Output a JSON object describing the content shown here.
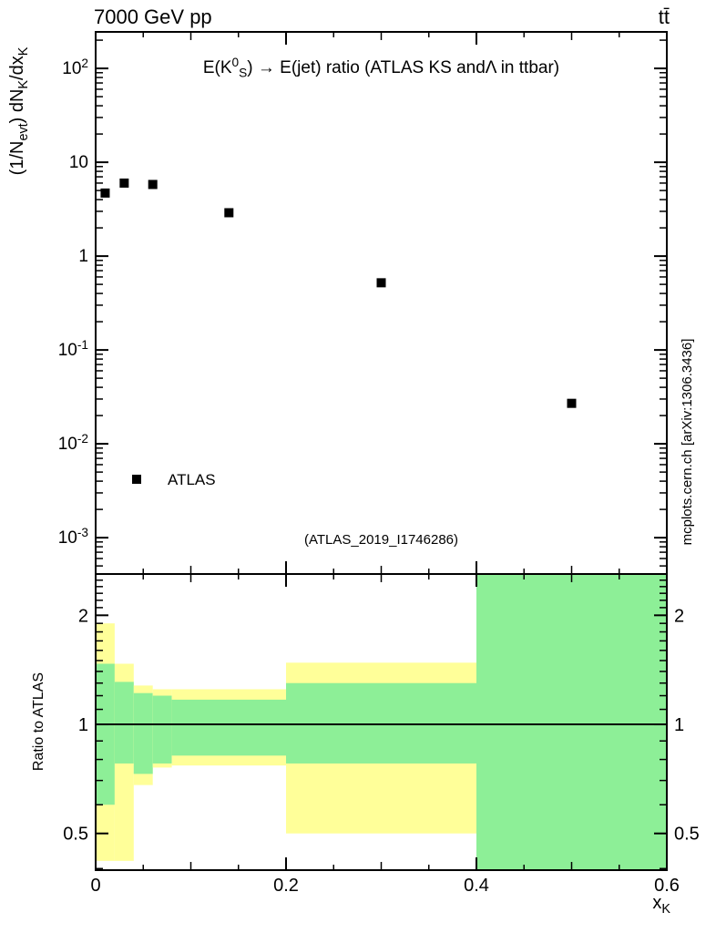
{
  "header": {
    "left_label": "7000 GeV pp",
    "right_label": "tt̄"
  },
  "watermark": {
    "text": "mcplots.cern.ch [arXiv:1306.3436]"
  },
  "chart_data": {
    "type": "scatter",
    "title": "E(K^{0}_{S}) → E(jet) ratio (ATLAS KS andΛ in ttbar)",
    "annotation": "(ATLAS_2019_I1746286)",
    "legend": [
      {
        "label": "ATLAS",
        "marker": "filled-square",
        "color": "#000000"
      }
    ],
    "x": {
      "label": "x_{K}",
      "min": 0,
      "max": 0.6,
      "major_ticks": [
        0,
        0.2,
        0.4,
        0.6
      ],
      "tick_labels": [
        "0",
        "0.2",
        "0.4",
        "0.6"
      ],
      "minor_step": 0.05
    },
    "top_panel": {
      "ylabel": "(1/N_{evt}) dN_{K}/dx_{K}",
      "yscale": "log",
      "ymin": 0.00041,
      "ymax": 245,
      "grid": false,
      "ticks": [
        {
          "value": 100,
          "label": "10^{2}"
        },
        {
          "value": 10,
          "label": "10"
        },
        {
          "value": 1,
          "label": "1"
        },
        {
          "value": 0.1,
          "label": "10^{-1}"
        },
        {
          "value": 0.01,
          "label": "10^{-2}"
        },
        {
          "value": 0.001,
          "label": "10^{-3}"
        }
      ],
      "series": [
        {
          "name": "ATLAS",
          "marker": "filled-square",
          "color": "#000000",
          "points": [
            [
              0.01,
              4.7
            ],
            [
              0.03,
              6.0
            ],
            [
              0.06,
              5.8
            ],
            [
              0.14,
              2.9
            ],
            [
              0.3,
              0.52
            ],
            [
              0.5,
              0.027
            ]
          ]
        }
      ]
    },
    "ratio_panel": {
      "ylabel": "Ratio to ATLAS",
      "yscale": "log",
      "ymin": 0.396,
      "ymax": 2.6,
      "reference_line": 1,
      "ticks": [
        {
          "value": 2,
          "label": "2"
        },
        {
          "value": 1,
          "label": "1"
        },
        {
          "value": 0.5,
          "label": "0.5"
        }
      ],
      "minor_ticks": [
        0.4,
        0.6,
        0.7,
        0.8,
        0.9,
        1.1,
        1.2,
        1.3,
        1.4,
        1.5,
        1.6,
        1.7,
        1.8,
        1.9,
        2.1,
        2.2,
        2.3,
        2.4,
        2.5
      ],
      "band_colors": {
        "outer": "#ffff99",
        "inner": "#8def97"
      },
      "bands": [
        {
          "x0": 0.0,
          "x1": 0.02,
          "outer": [
            0.42,
            1.9
          ],
          "inner": [
            0.6,
            1.47
          ]
        },
        {
          "x0": 0.02,
          "x1": 0.04,
          "outer": [
            0.42,
            1.47
          ],
          "inner": [
            0.78,
            1.31
          ]
        },
        {
          "x0": 0.04,
          "x1": 0.06,
          "outer": [
            0.68,
            1.28
          ],
          "inner": [
            0.73,
            1.22
          ]
        },
        {
          "x0": 0.06,
          "x1": 0.08,
          "outer": [
            0.76,
            1.25
          ],
          "inner": [
            0.78,
            1.2
          ]
        },
        {
          "x0": 0.08,
          "x1": 0.2,
          "outer": [
            0.77,
            1.25
          ],
          "inner": [
            0.82,
            1.17
          ]
        },
        {
          "x0": 0.2,
          "x1": 0.4,
          "outer": [
            0.5,
            1.48
          ],
          "inner": [
            0.78,
            1.3
          ]
        },
        {
          "x0": 0.4,
          "x1": 0.6,
          "outer": [
            0.396,
            2.6
          ],
          "inner": [
            0.396,
            2.6
          ]
        }
      ]
    }
  }
}
